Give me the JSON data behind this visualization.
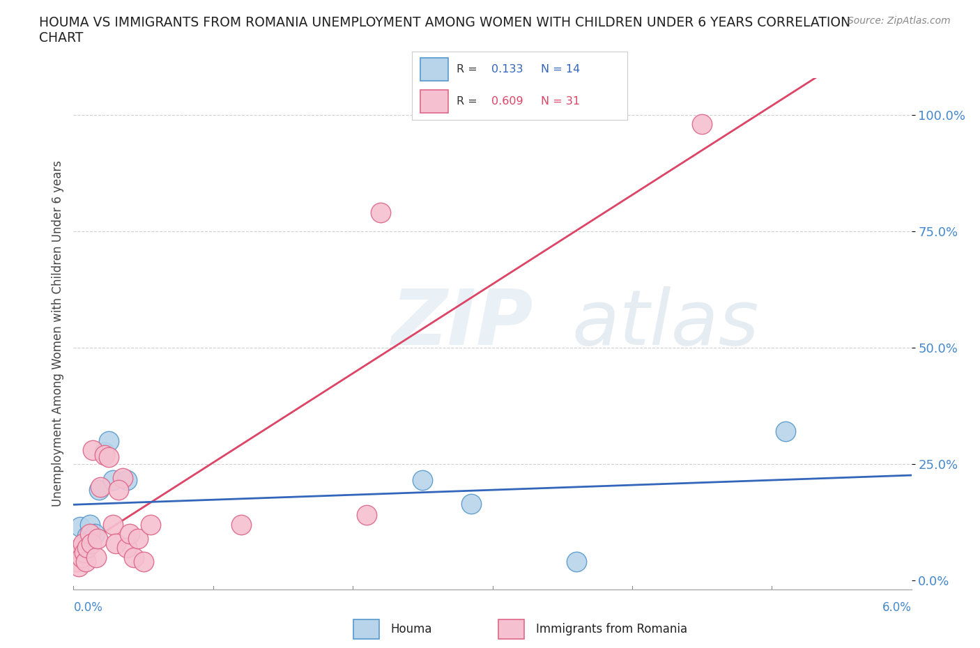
{
  "title": "HOUMA VS IMMIGRANTS FROM ROMANIA UNEMPLOYMENT AMONG WOMEN WITH CHILDREN UNDER 6 YEARS CORRELATION\nCHART",
  "source": "Source: ZipAtlas.com",
  "ylabel": "Unemployment Among Women with Children Under 6 years",
  "xlim": [
    0.0,
    6.0
  ],
  "ylim": [
    -0.02,
    1.08
  ],
  "yticks": [
    0.0,
    0.25,
    0.5,
    0.75,
    1.0
  ],
  "ytick_labels": [
    "0.0%",
    "25.0%",
    "50.0%",
    "75.0%",
    "100.0%"
  ],
  "houma_R": 0.133,
  "houma_N": 14,
  "romania_R": 0.609,
  "romania_N": 31,
  "houma_color": "#b8d4ea",
  "houma_edge": "#5599cc",
  "romania_color": "#f5c0d0",
  "romania_edge": "#dd6688",
  "houma_line_color": "#3366bb",
  "romania_line_color": "#dd4466",
  "houma_x": [
    0.05,
    0.08,
    0.1,
    0.12,
    0.15,
    0.18,
    0.22,
    0.25,
    0.28,
    0.38,
    2.5,
    2.85,
    3.6,
    5.1
  ],
  "houma_y": [
    0.115,
    0.075,
    0.095,
    0.12,
    0.1,
    0.195,
    0.275,
    0.3,
    0.215,
    0.215,
    0.215,
    0.165,
    0.04,
    0.32
  ],
  "romania_x": [
    0.02,
    0.03,
    0.04,
    0.05,
    0.06,
    0.07,
    0.08,
    0.09,
    0.1,
    0.12,
    0.13,
    0.14,
    0.16,
    0.17,
    0.19,
    0.22,
    0.25,
    0.28,
    0.3,
    0.35,
    0.38,
    0.4,
    0.43,
    0.46,
    0.5,
    0.55,
    1.2,
    2.1,
    2.2,
    4.5,
    0.32
  ],
  "romania_y": [
    0.04,
    0.06,
    0.03,
    0.07,
    0.05,
    0.08,
    0.06,
    0.04,
    0.07,
    0.1,
    0.08,
    0.28,
    0.05,
    0.09,
    0.2,
    0.27,
    0.265,
    0.12,
    0.08,
    0.22,
    0.07,
    0.1,
    0.05,
    0.09,
    0.04,
    0.12,
    0.12,
    0.14,
    0.79,
    0.98,
    0.195
  ]
}
